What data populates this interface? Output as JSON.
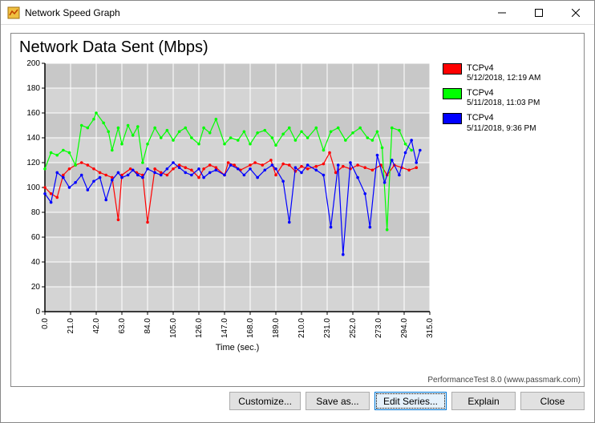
{
  "window": {
    "title": "Network Speed Graph"
  },
  "chart": {
    "type": "line",
    "title": "Network Data Sent (Mbps)",
    "xlabel": "Time (sec.)",
    "ylim": [
      0,
      200
    ],
    "ytick_step": 20,
    "xlim": [
      0,
      315
    ],
    "xtick_step": 21,
    "background_color": "#d4d4d4",
    "grid_color": "#ffffff",
    "plot_bg": "#c8c8c8",
    "axis_color": "#000000",
    "tick_fontsize": 10,
    "title_fontsize": 20,
    "series": [
      {
        "name": "TCPv4",
        "sub": "5/12/2018, 12:19 AM",
        "color": "#ff0000",
        "data": [
          [
            0,
            100
          ],
          [
            5,
            95
          ],
          [
            10,
            92
          ],
          [
            15,
            110
          ],
          [
            20,
            115
          ],
          [
            25,
            118
          ],
          [
            30,
            120
          ],
          [
            35,
            118
          ],
          [
            40,
            115
          ],
          [
            45,
            112
          ],
          [
            50,
            110
          ],
          [
            55,
            108
          ],
          [
            60,
            74
          ],
          [
            63,
            110
          ],
          [
            70,
            115
          ],
          [
            75,
            112
          ],
          [
            80,
            110
          ],
          [
            84,
            72
          ],
          [
            90,
            115
          ],
          [
            95,
            112
          ],
          [
            100,
            110
          ],
          [
            105,
            115
          ],
          [
            110,
            118
          ],
          [
            115,
            116
          ],
          [
            120,
            114
          ],
          [
            126,
            108
          ],
          [
            130,
            115
          ],
          [
            135,
            118
          ],
          [
            140,
            116
          ],
          [
            147,
            110
          ],
          [
            150,
            120
          ],
          [
            155,
            118
          ],
          [
            160,
            114
          ],
          [
            168,
            118
          ],
          [
            172,
            120
          ],
          [
            178,
            118
          ],
          [
            185,
            122
          ],
          [
            189,
            110
          ],
          [
            195,
            119
          ],
          [
            200,
            118
          ],
          [
            205,
            113
          ],
          [
            210,
            117
          ],
          [
            215,
            115
          ],
          [
            222,
            117
          ],
          [
            228,
            119
          ],
          [
            233,
            128
          ],
          [
            238,
            112
          ],
          [
            244,
            117
          ],
          [
            250,
            115
          ],
          [
            256,
            118
          ],
          [
            262,
            116
          ],
          [
            268,
            114
          ],
          [
            275,
            118
          ],
          [
            280,
            110
          ],
          [
            286,
            118
          ],
          [
            292,
            116
          ],
          [
            298,
            114
          ],
          [
            304,
            116
          ]
        ]
      },
      {
        "name": "TCPv4",
        "sub": "5/11/2018, 11:03 PM",
        "color": "#00ff00",
        "data": [
          [
            0,
            115
          ],
          [
            5,
            128
          ],
          [
            10,
            126
          ],
          [
            15,
            130
          ],
          [
            20,
            128
          ],
          [
            25,
            118
          ],
          [
            30,
            150
          ],
          [
            35,
            148
          ],
          [
            40,
            155
          ],
          [
            42,
            160
          ],
          [
            48,
            152
          ],
          [
            52,
            145
          ],
          [
            55,
            130
          ],
          [
            60,
            148
          ],
          [
            63,
            135
          ],
          [
            68,
            150
          ],
          [
            72,
            142
          ],
          [
            76,
            149
          ],
          [
            80,
            120
          ],
          [
            84,
            135
          ],
          [
            90,
            148
          ],
          [
            95,
            140
          ],
          [
            100,
            146
          ],
          [
            105,
            138
          ],
          [
            110,
            145
          ],
          [
            115,
            148
          ],
          [
            120,
            140
          ],
          [
            126,
            135
          ],
          [
            130,
            148
          ],
          [
            135,
            144
          ],
          [
            140,
            155
          ],
          [
            147,
            135
          ],
          [
            152,
            140
          ],
          [
            158,
            138
          ],
          [
            163,
            145
          ],
          [
            168,
            135
          ],
          [
            174,
            144
          ],
          [
            180,
            146
          ],
          [
            186,
            140
          ],
          [
            189,
            134
          ],
          [
            195,
            143
          ],
          [
            200,
            148
          ],
          [
            205,
            138
          ],
          [
            210,
            145
          ],
          [
            215,
            140
          ],
          [
            222,
            148
          ],
          [
            228,
            130
          ],
          [
            234,
            145
          ],
          [
            240,
            148
          ],
          [
            246,
            138
          ],
          [
            252,
            144
          ],
          [
            258,
            148
          ],
          [
            264,
            140
          ],
          [
            268,
            138
          ],
          [
            272,
            145
          ],
          [
            276,
            132
          ],
          [
            280,
            66
          ],
          [
            284,
            148
          ],
          [
            290,
            146
          ],
          [
            295,
            135
          ],
          [
            300,
            130
          ]
        ]
      },
      {
        "name": "TCPv4",
        "sub": "5/11/2018, 9:36 PM",
        "color": "#0000ff",
        "data": [
          [
            0,
            95
          ],
          [
            5,
            88
          ],
          [
            10,
            112
          ],
          [
            15,
            108
          ],
          [
            20,
            100
          ],
          [
            25,
            104
          ],
          [
            30,
            110
          ],
          [
            35,
            98
          ],
          [
            40,
            105
          ],
          [
            45,
            108
          ],
          [
            50,
            90
          ],
          [
            55,
            106
          ],
          [
            60,
            112
          ],
          [
            63,
            108
          ],
          [
            68,
            110
          ],
          [
            72,
            114
          ],
          [
            76,
            110
          ],
          [
            80,
            108
          ],
          [
            84,
            115
          ],
          [
            90,
            112
          ],
          [
            95,
            110
          ],
          [
            100,
            115
          ],
          [
            105,
            120
          ],
          [
            110,
            116
          ],
          [
            115,
            112
          ],
          [
            120,
            110
          ],
          [
            126,
            115
          ],
          [
            130,
            108
          ],
          [
            135,
            112
          ],
          [
            140,
            114
          ],
          [
            147,
            110
          ],
          [
            152,
            118
          ],
          [
            158,
            115
          ],
          [
            163,
            110
          ],
          [
            168,
            115
          ],
          [
            174,
            108
          ],
          [
            180,
            114
          ],
          [
            186,
            118
          ],
          [
            189,
            115
          ],
          [
            195,
            105
          ],
          [
            200,
            72
          ],
          [
            205,
            116
          ],
          [
            210,
            112
          ],
          [
            215,
            118
          ],
          [
            222,
            114
          ],
          [
            228,
            110
          ],
          [
            234,
            68
          ],
          [
            240,
            118
          ],
          [
            244,
            46
          ],
          [
            250,
            120
          ],
          [
            256,
            108
          ],
          [
            262,
            95
          ],
          [
            266,
            68
          ],
          [
            272,
            126
          ],
          [
            278,
            104
          ],
          [
            284,
            122
          ],
          [
            290,
            110
          ],
          [
            295,
            128
          ],
          [
            300,
            138
          ],
          [
            304,
            120
          ],
          [
            307,
            130
          ]
        ]
      }
    ]
  },
  "legend": {
    "items": [
      {
        "color": "#ff0000",
        "label": "TCPv4",
        "sub": "5/12/2018, 12:19 AM"
      },
      {
        "color": "#00ff00",
        "label": "TCPv4",
        "sub": "5/11/2018, 11:03 PM"
      },
      {
        "color": "#0000ff",
        "label": "TCPv4",
        "sub": "5/11/2018, 9:36 PM"
      }
    ]
  },
  "watermark": "PerformanceTest 8.0 (www.passmark.com)",
  "buttons": {
    "customize": "Customize...",
    "saveas": "Save as...",
    "editseries": "Edit Series...",
    "explain": "Explain",
    "close": "Close"
  }
}
